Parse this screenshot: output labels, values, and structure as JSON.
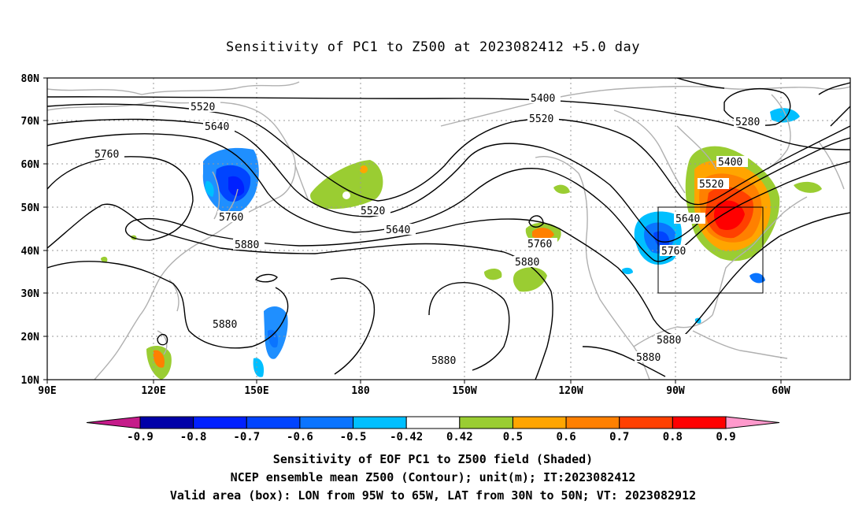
{
  "title": "Sensitivity of PC1 to Z500 at 2023082412 +5.0 day",
  "lat_labels": [
    "80N",
    "70N",
    "60N",
    "50N",
    "40N",
    "30N",
    "20N",
    "10N"
  ],
  "lon_labels": [
    "90E",
    "120E",
    "150E",
    "180",
    "150W",
    "120W",
    "90W",
    "60W"
  ],
  "contour_labels": [
    "5400",
    "5520",
    "5640",
    "5760",
    "5880",
    "5280"
  ],
  "colorbar": {
    "colors": [
      "#c51b8a",
      "#0000a8",
      "#0020ff",
      "#0044ff",
      "#0a74ff",
      "#00bfff",
      "#ffffff",
      "#9acd32",
      "#ffa500",
      "#ff8000",
      "#ff4000",
      "#ff0000",
      "#ff99cc"
    ],
    "tick_labels": [
      "-0.9",
      "-0.8",
      "-0.7",
      "-0.6",
      "-0.5",
      "-0.42",
      "0.42",
      "0.5",
      "0.6",
      "0.7",
      "0.8",
      "0.9"
    ]
  },
  "captions": [
    "Sensitivity of EOF PC1 to Z500 field (Shaded)",
    "NCEP ensemble mean Z500 (Contour); unit(m); IT:2023082412",
    "Valid area (box): LON from 95W to 65W, LAT from 30N to 50N; VT: 2023082912"
  ],
  "valid_area": {
    "lon": [
      -95,
      -65
    ],
    "lat": [
      30,
      50
    ]
  }
}
